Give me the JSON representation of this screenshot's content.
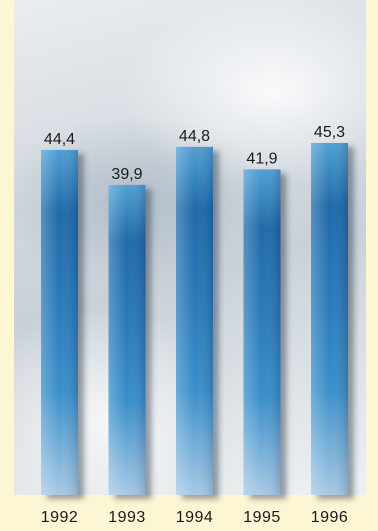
{
  "chart_data": {
    "type": "bar",
    "categories": [
      "1992",
      "1993",
      "1994",
      "1995",
      "1996"
    ],
    "values": [
      44.4,
      39.9,
      44.8,
      41.9,
      45.3
    ],
    "value_labels": [
      "44,4",
      "39,9",
      "44,8",
      "41,9",
      "45,3"
    ],
    "title": "",
    "xlabel": "",
    "ylabel": "",
    "ylim": [
      0,
      45.3
    ],
    "grid": false,
    "colors": {
      "bar_top": "#2c86c4",
      "bar_mid": "#1f6aa8",
      "bar_bottom": "#7fb3d9",
      "background": "#fdf6d4"
    }
  }
}
